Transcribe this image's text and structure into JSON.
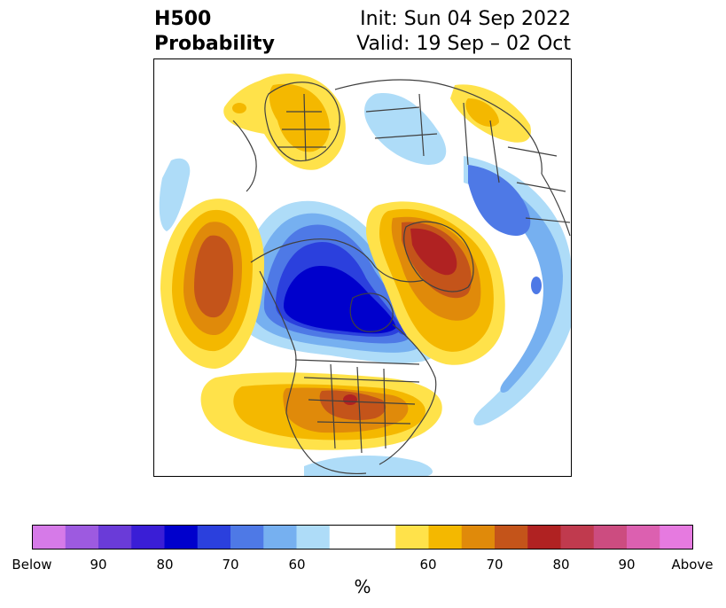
{
  "header": {
    "title_line1": "H500",
    "title_line2": "Probability",
    "init_text": "Init: Sun 04 Sep 2022",
    "valid_text": "Valid: 19 Sep – 02 Oct"
  },
  "colorbar": {
    "unit": "%",
    "colors": [
      "#d67ae8",
      "#9d5ae0",
      "#6a3bd8",
      "#3a1ed6",
      "#0000cc",
      "#2b40dd",
      "#4e79e6",
      "#76b0f0",
      "#aedcf8",
      "#ffffff",
      "#ffffff",
      "#ffe24a",
      "#f4b800",
      "#e08a0a",
      "#c4541a",
      "#b02222",
      "#c03a4e",
      "#cc4c80",
      "#dc60b0",
      "#e67ae0"
    ],
    "tick_labels": [
      "Below",
      "90",
      "80",
      "70",
      "60",
      "60",
      "70",
      "80",
      "90",
      "Above"
    ]
  },
  "map": {
    "region": "Northern Hemisphere polar projection (North America / Arctic)",
    "outline_color": "#404040"
  }
}
